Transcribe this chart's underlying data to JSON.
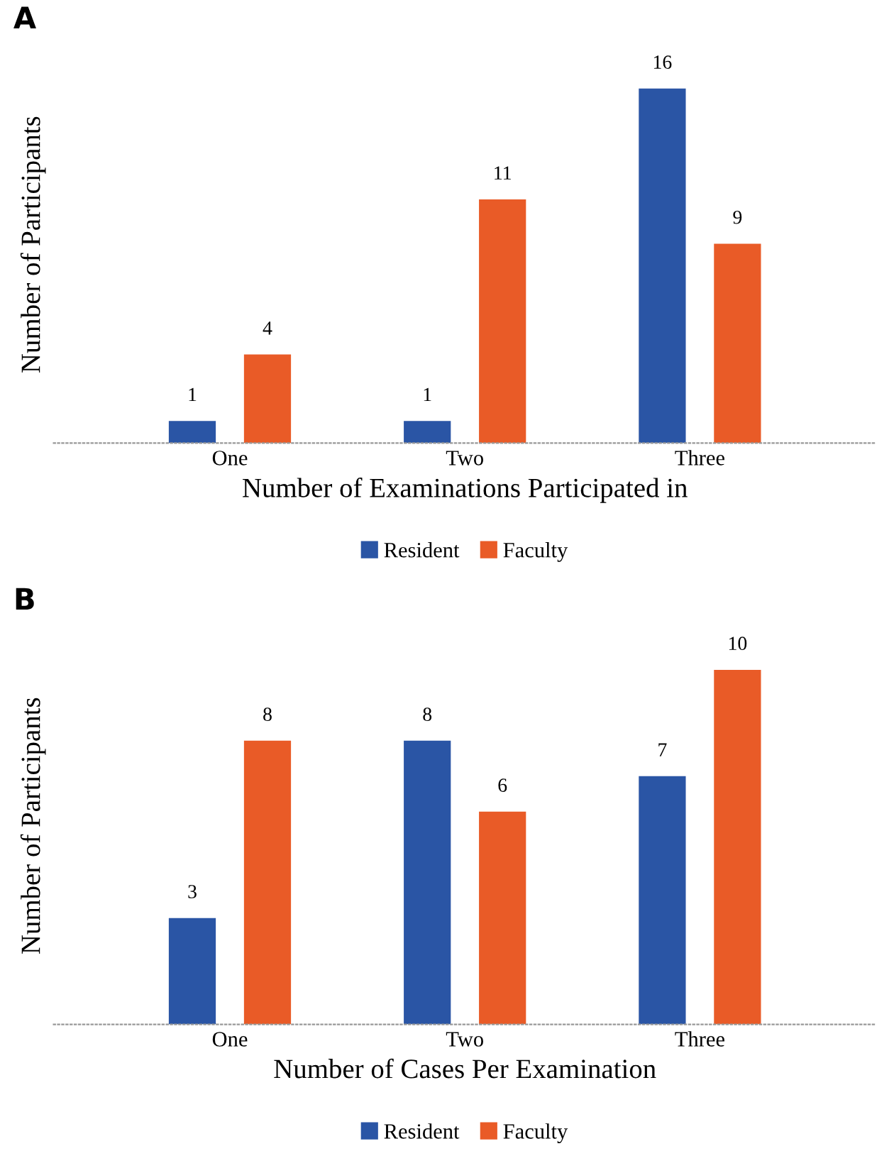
{
  "chart_data": [
    {
      "type": "bar",
      "title": "A",
      "xlabel": "Number of Examinations Participated in",
      "ylabel": "Number of Participants",
      "categories": [
        "One",
        "Two",
        "Three"
      ],
      "series": [
        {
          "name": "Resident",
          "color": "#2a55a5",
          "values": [
            1,
            1,
            16
          ]
        },
        {
          "name": "Faculty",
          "color": "#e95b27",
          "values": [
            4,
            11,
            9
          ]
        }
      ],
      "data_labels": true,
      "legend": "bottom",
      "tick_labels": "x"
    },
    {
      "type": "bar",
      "title": "B",
      "xlabel": "Number of Cases Per Examination",
      "ylabel": "Number of Participants",
      "categories": [
        "One",
        "Two",
        "Three"
      ],
      "series": [
        {
          "name": "Resident",
          "color": "#2a55a5",
          "values": [
            3,
            8,
            7
          ]
        },
        {
          "name": "Faculty",
          "color": "#e95b27",
          "values": [
            8,
            6,
            10
          ]
        }
      ],
      "data_labels": true,
      "legend": "bottom",
      "tick_labels": "x"
    }
  ]
}
